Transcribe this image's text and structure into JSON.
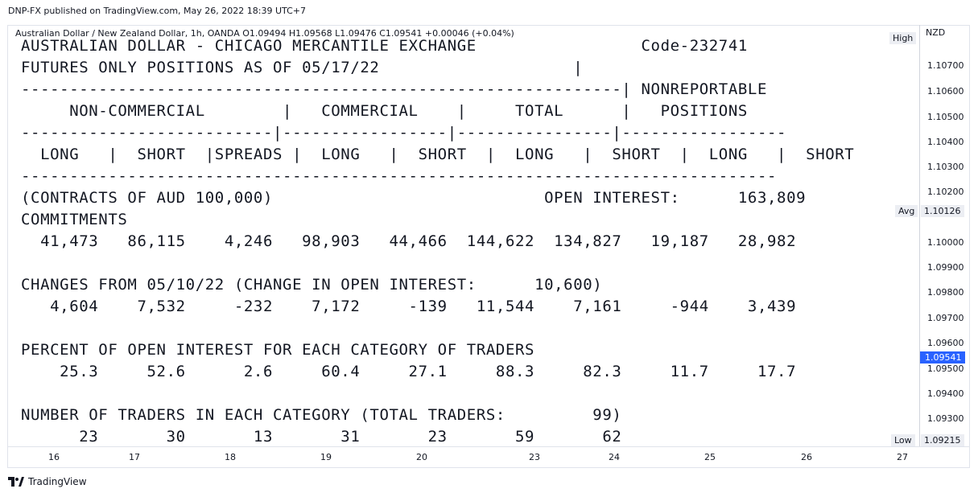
{
  "header": {
    "published": "DNP-FX published on TradingView.com, May 26, 2022 18:39 UTC+7"
  },
  "legend": {
    "text": "Australian Dollar / New Zealand Dollar, 1h, OANDA  O1.09494  H1.09568  L1.09476  C1.09541  +0.00046 (+0.04%)"
  },
  "price_axis": {
    "currency": "NZD",
    "high_label": "High",
    "avg_label": "Avg",
    "avg_value": "1.10126",
    "low_label": "Low",
    "low_value": "1.09215",
    "current_price": "1.09541",
    "ticks": [
      "1.10700",
      "1.10600",
      "1.10500",
      "1.10400",
      "1.10300",
      "1.10200",
      "1.10000",
      "1.09900",
      "1.09800",
      "1.09700",
      "1.09600",
      "1.09500",
      "1.09400",
      "1.09300"
    ]
  },
  "time_axis": {
    "ticks": [
      "16",
      "17",
      "18",
      "19",
      "20",
      "23",
      "24",
      "25",
      "26",
      "27"
    ]
  },
  "cftc_report": {
    "lines": [
      "AUSTRALIAN DOLLAR - CHICAGO MERCANTILE EXCHANGE                 Code-232741",
      "FUTURES ONLY POSITIONS AS OF 05/17/22                    |",
      "--------------------------------------------------------------| NONREPORTABLE",
      "     NON-COMMERCIAL        |   COMMERCIAL    |     TOTAL      |   POSITIONS",
      "--------------------------|-----------------|----------------|-----------------",
      "  LONG   |  SHORT  |SPREADS |  LONG   |  SHORT  |  LONG   |  SHORT  |  LONG   |  SHORT",
      "------------------------------------------------------------------------------",
      "(CONTRACTS OF AUD 100,000)                            OPEN INTEREST:      163,809",
      "COMMITMENTS",
      "  41,473   86,115    4,246   98,903   44,466  144,622  134,827   19,187   28,982",
      "",
      "CHANGES FROM 05/10/22 (CHANGE IN OPEN INTEREST:      10,600)",
      "   4,604    7,532     -232    7,172     -139   11,544    7,161     -944    3,439",
      "",
      "PERCENT OF OPEN INTEREST FOR EACH CATEGORY OF TRADERS",
      "    25.3     52.6      2.6     60.4     27.1     88.3     82.3     11.7     17.7",
      "",
      "NUMBER OF TRADERS IN EACH CATEGORY (TOTAL TRADERS:         99)",
      "      23       30       13       31       23       59       62"
    ]
  },
  "footer": {
    "brand": "TradingView"
  }
}
